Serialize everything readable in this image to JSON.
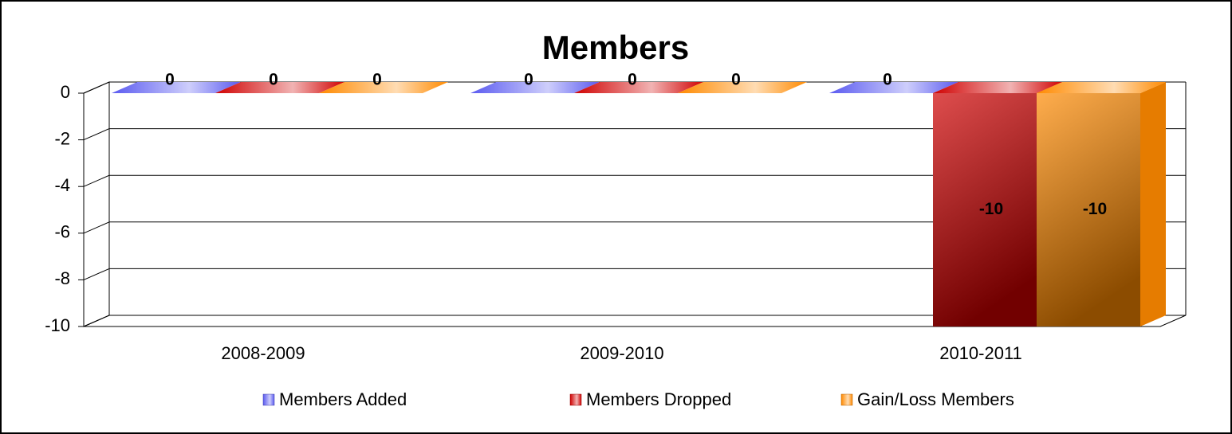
{
  "chart_data": {
    "type": "bar3d",
    "title": "Members",
    "categories": [
      "2008-2009",
      "2009-2010",
      "2010-2011"
    ],
    "series": [
      {
        "name": "Members Added",
        "color": "#5a5af0",
        "values": [
          0,
          0,
          0
        ]
      },
      {
        "name": "Members Dropped",
        "color": "#d00000",
        "values": [
          0,
          0,
          -10
        ]
      },
      {
        "name": "Gain/Loss Members",
        "color": "#ff8a00",
        "values": [
          0,
          0,
          -10
        ]
      }
    ],
    "ylim": [
      -10,
      0
    ],
    "yticks": [
      0,
      -2,
      -4,
      -6,
      -8,
      -10
    ],
    "grid": true,
    "legend": "bottom"
  }
}
